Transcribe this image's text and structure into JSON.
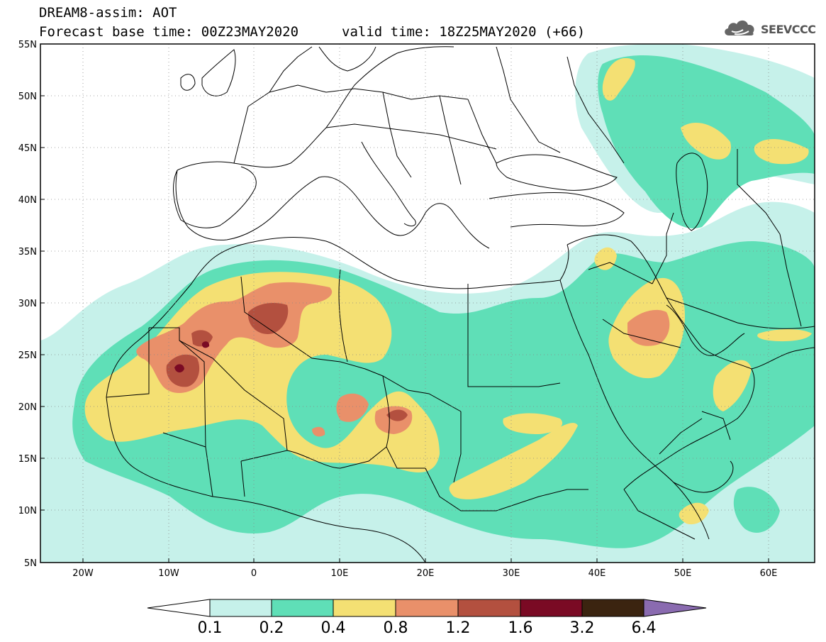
{
  "title": {
    "line1": "DREAM8-assim: AOT",
    "line2": "Forecast base time: 00Z23MAY2020",
    "valid": "valid time: 18Z25MAY2020 (+66)"
  },
  "logo": {
    "text": "SEEVCCC",
    "icon": "cloud-icon"
  },
  "axes": {
    "lat_labels": [
      "55N",
      "50N",
      "45N",
      "40N",
      "35N",
      "30N",
      "25N",
      "20N",
      "15N",
      "10N",
      "5N"
    ],
    "lon_labels": [
      "20W",
      "10W",
      "0",
      "10E",
      "20E",
      "30E",
      "40E",
      "50E",
      "60E"
    ],
    "lat_range": [
      5,
      55
    ],
    "lon_range": [
      -25,
      65
    ]
  },
  "colorbar": {
    "labels": [
      "0.1",
      "0.2",
      "0.4",
      "0.8",
      "1.2",
      "1.6",
      "3.2",
      "6.4"
    ],
    "colors": [
      "#ffffff",
      "#c6f1ea",
      "#5fdfb7",
      "#f4e073",
      "#e9906a",
      "#b3503f",
      "#7a0a24",
      "#3b2410",
      "#8a6bb0"
    ]
  },
  "colors": {
    "c01": "#c6f1ea",
    "c02": "#5fdfb7",
    "c04": "#f4e073",
    "c08": "#e9906a",
    "c12": "#b3503f",
    "c16": "#7a0a24"
  }
}
